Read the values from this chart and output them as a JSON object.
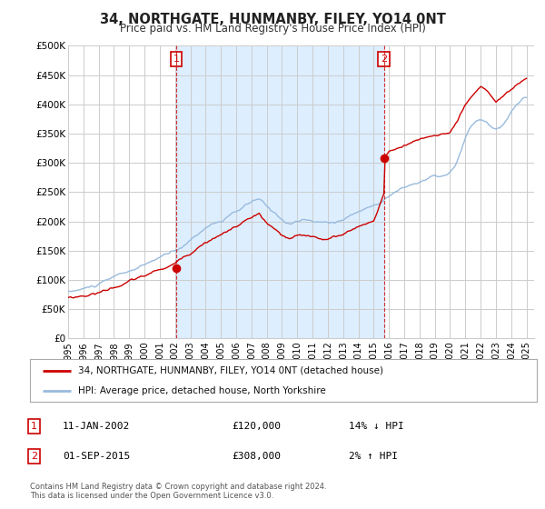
{
  "title": "34, NORTHGATE, HUNMANBY, FILEY, YO14 0NT",
  "subtitle": "Price paid vs. HM Land Registry's House Price Index (HPI)",
  "background_color": "#ffffff",
  "plot_bg_color": "#ffffff",
  "plot_bg_shaded": "#ddeeff",
  "grid_color": "#cccccc",
  "ylim": [
    0,
    500000
  ],
  "yticks": [
    0,
    50000,
    100000,
    150000,
    200000,
    250000,
    300000,
    350000,
    400000,
    450000,
    500000
  ],
  "ytick_labels": [
    "£0",
    "£50K",
    "£100K",
    "£150K",
    "£200K",
    "£250K",
    "£300K",
    "£350K",
    "£400K",
    "£450K",
    "£500K"
  ],
  "marker1_year": 2002.08,
  "marker1_value": 120000,
  "marker1_label": "1",
  "marker2_year": 2015.67,
  "marker2_value": 308000,
  "marker2_label": "2",
  "legend_line1": "34, NORTHGATE, HUNMANBY, FILEY, YO14 0NT (detached house)",
  "legend_line2": "HPI: Average price, detached house, North Yorkshire",
  "annotation1_label": "1",
  "annotation1_date": "11-JAN-2002",
  "annotation1_price": "£120,000",
  "annotation1_hpi": "14% ↓ HPI",
  "annotation2_label": "2",
  "annotation2_date": "01-SEP-2015",
  "annotation2_price": "£308,000",
  "annotation2_hpi": "2% ↑ HPI",
  "footer": "Contains HM Land Registry data © Crown copyright and database right 2024.\nThis data is licensed under the Open Government Licence v3.0.",
  "line_color_red": "#cc0000",
  "line_color_blue": "#99bbdd",
  "xlim_left": 1995.0,
  "xlim_right": 2025.5
}
